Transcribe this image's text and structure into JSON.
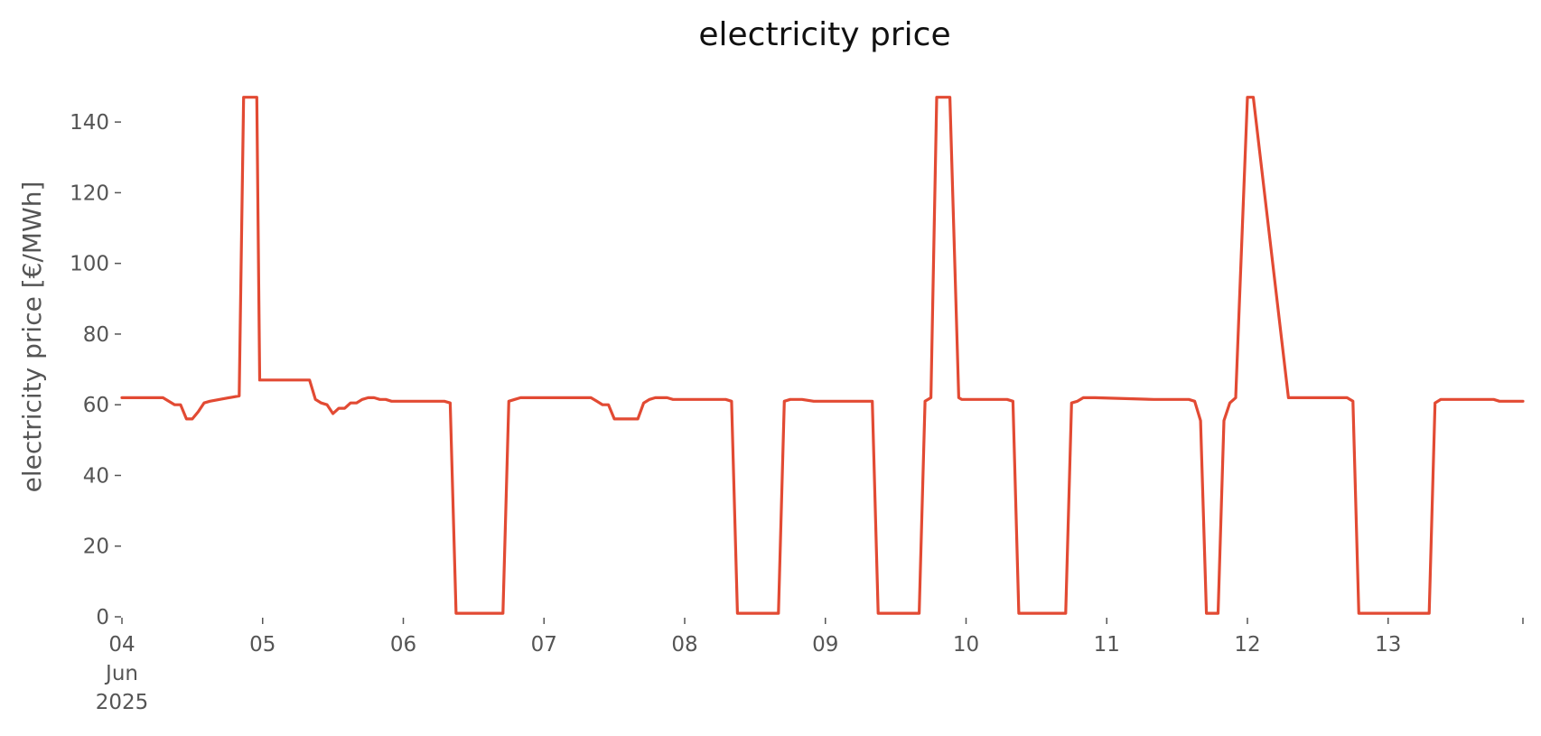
{
  "chart_data": {
    "type": "line",
    "title": "electricity price",
    "ylabel": "electricity price [€/MWh]",
    "xlabel": "",
    "ylim": [
      0,
      150
    ],
    "xlim": [
      "2025-06-04 00:00",
      "2025-06-13 23:00"
    ],
    "y_ticks": [
      0,
      20,
      40,
      60,
      80,
      100,
      120,
      140
    ],
    "x_ticks": [
      {
        "date": "2025-06-04",
        "label": "04",
        "sublabels": [
          "Jun",
          "2025"
        ]
      },
      {
        "date": "2025-06-05",
        "label": "05"
      },
      {
        "date": "2025-06-06",
        "label": "06"
      },
      {
        "date": "2025-06-07",
        "label": "07"
      },
      {
        "date": "2025-06-08",
        "label": "08"
      },
      {
        "date": "2025-06-09",
        "label": "09"
      },
      {
        "date": "2025-06-10",
        "label": "10"
      },
      {
        "date": "2025-06-11",
        "label": "11"
      },
      {
        "date": "2025-06-12",
        "label": "12"
      },
      {
        "date": "2025-06-13",
        "label": "13"
      }
    ],
    "grid": false,
    "color": "#e24a33",
    "series": [
      {
        "x": [
          "2025-06-04 00:00",
          "2025-06-04 07:00",
          "2025-06-04 09:00",
          "2025-06-04 10:00",
          "2025-06-04 11:00",
          "2025-06-04 12:00",
          "2025-06-04 13:00",
          "2025-06-04 14:00",
          "2025-06-04 15:00",
          "2025-06-04 20:00",
          "2025-06-04 20:45",
          "2025-06-04 21:15",
          "2025-06-04 23:00",
          "2025-06-04 23:30",
          "2025-06-05 07:00",
          "2025-06-05 08:00",
          "2025-06-05 09:00",
          "2025-06-05 10:00",
          "2025-06-05 11:00",
          "2025-06-05 12:00",
          "2025-06-05 13:00",
          "2025-06-05 14:00",
          "2025-06-05 15:00",
          "2025-06-05 16:00",
          "2025-06-05 17:00",
          "2025-06-05 18:00",
          "2025-06-05 19:00",
          "2025-06-05 20:00",
          "2025-06-05 21:00",
          "2025-06-05 22:00",
          "2025-06-05 23:00",
          "2025-06-06 06:00",
          "2025-06-06 07:00",
          "2025-06-06 08:00",
          "2025-06-06 09:00",
          "2025-06-06 17:00",
          "2025-06-06 18:00",
          "2025-06-06 19:00",
          "2025-06-06 20:00",
          "2025-06-06 21:00",
          "2025-06-07 07:00",
          "2025-06-07 08:00",
          "2025-06-07 09:00",
          "2025-06-07 10:00",
          "2025-06-07 11:00",
          "2025-06-07 12:00",
          "2025-06-07 16:00",
          "2025-06-07 17:00",
          "2025-06-07 18:00",
          "2025-06-07 19:00",
          "2025-06-07 20:00",
          "2025-06-07 21:00",
          "2025-06-07 22:00",
          "2025-06-07 23:00",
          "2025-06-08 07:00",
          "2025-06-08 08:00",
          "2025-06-08 09:00",
          "2025-06-08 13:00",
          "2025-06-08 16:00",
          "2025-06-08 17:00",
          "2025-06-08 18:00",
          "2025-06-08 19:00",
          "2025-06-08 20:00",
          "2025-06-08 22:00",
          "2025-06-09 08:00",
          "2025-06-09 09:00",
          "2025-06-09 16:00",
          "2025-06-09 17:00",
          "2025-06-09 18:00",
          "2025-06-09 19:00",
          "2025-06-09 20:00",
          "2025-06-09 20:30",
          "2025-06-09 21:15",
          "2025-06-09 22:45",
          "2025-06-09 23:15",
          "2025-06-10 00:00",
          "2025-06-10 01:00",
          "2025-06-10 07:00",
          "2025-06-10 08:00",
          "2025-06-10 09:00",
          "2025-06-10 17:00",
          "2025-06-10 18:00",
          "2025-06-10 19:00",
          "2025-06-10 20:00",
          "2025-06-10 22:00",
          "2025-06-11 08:00",
          "2025-06-11 09:00",
          "2025-06-11 10:00",
          "2025-06-11 11:00",
          "2025-06-11 12:00",
          "2025-06-11 14:00",
          "2025-06-11 15:00",
          "2025-06-11 16:00",
          "2025-06-11 17:00",
          "2025-06-11 18:00",
          "2025-06-11 19:00",
          "2025-06-11 20:00",
          "2025-06-11 21:00",
          "2025-06-11 22:00",
          "2025-06-12 00:00",
          "2025-06-12 01:00",
          "2025-06-12 07:00",
          "2025-06-12 08:00",
          "2025-06-12 09:00",
          "2025-06-12 17:00",
          "2025-06-12 18:00",
          "2025-06-12 19:00",
          "2025-06-12 20:00",
          "2025-06-12 21:00",
          "2025-06-12 22:00",
          "2025-06-12 23:00",
          "2025-06-13 07:00",
          "2025-06-13 08:00",
          "2025-06-13 09:00",
          "2025-06-13 17:00",
          "2025-06-13 18:00",
          "2025-06-13 19:00",
          "2025-06-13 20:00",
          "2025-06-13 21:00",
          "2025-06-13 22:00",
          "2025-06-13 23:00"
        ],
        "values": [
          62,
          62,
          60,
          60,
          56,
          56,
          58,
          60.5,
          61,
          62.5,
          147,
          147,
          147,
          67,
          67,
          67,
          61.5,
          60.5,
          60,
          57.5,
          59,
          59,
          60.5,
          60.5,
          61.5,
          62,
          62,
          61.5,
          61.5,
          61,
          61,
          61,
          61,
          60.5,
          1,
          1,
          61,
          61.5,
          62,
          62,
          62,
          62,
          61,
          60,
          60,
          56,
          56,
          60.5,
          61.5,
          62,
          62,
          62,
          61.5,
          61.5,
          61.5,
          61,
          1,
          1,
          1,
          61,
          61.5,
          61.5,
          61.5,
          61,
          61,
          1,
          1,
          61,
          62,
          147,
          147,
          147,
          147,
          62,
          61.5,
          61.5,
          61.5,
          61.5,
          61,
          1,
          1,
          60.5,
          61,
          62,
          62,
          61.5,
          61.5,
          61.5,
          61.5,
          61.5,
          61.5,
          61,
          55.5,
          1,
          1,
          1,
          55.5,
          60.5,
          62,
          147,
          147,
          62,
          62,
          62,
          62,
          61,
          1,
          1,
          1,
          1,
          1,
          1,
          60.5,
          61.5,
          61.5,
          61.5,
          61,
          61,
          61,
          61,
          61
        ]
      }
    ]
  }
}
